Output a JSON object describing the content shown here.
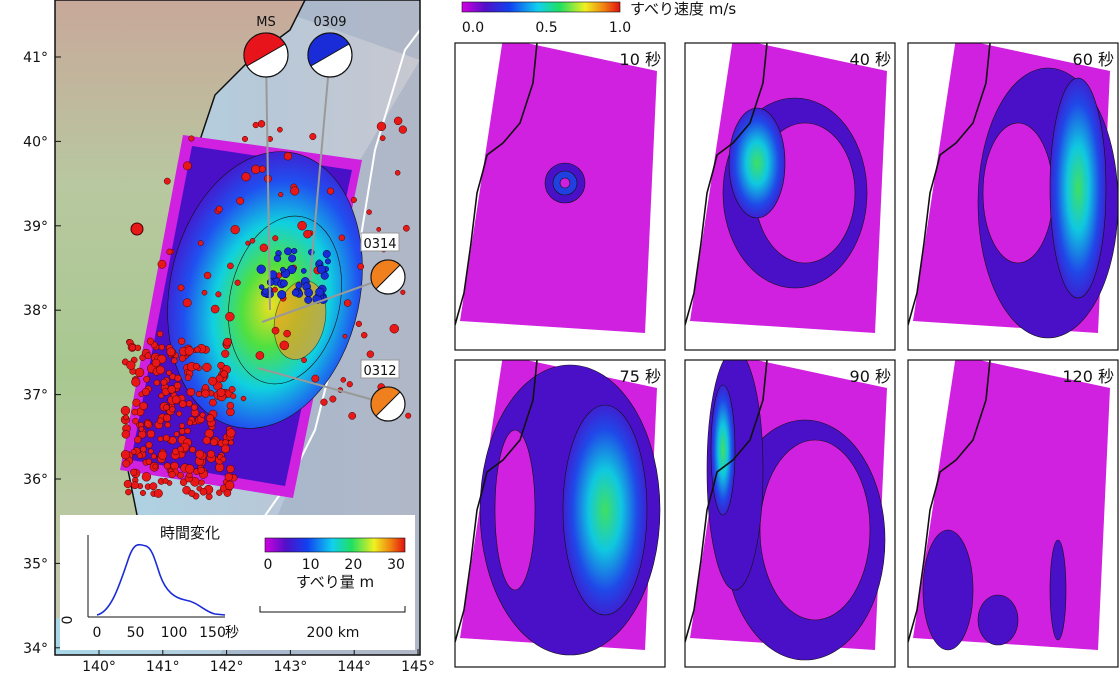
{
  "map": {
    "lat_ticks": [
      {
        "value": 41,
        "label": "41°"
      },
      {
        "value": 40,
        "label": "40°"
      },
      {
        "value": 39,
        "label": "39°"
      },
      {
        "value": 38,
        "label": "38°"
      },
      {
        "value": 37,
        "label": "37°"
      },
      {
        "value": 36,
        "label": "36°"
      },
      {
        "value": 35,
        "label": "35°"
      },
      {
        "value": 34,
        "label": "34°"
      }
    ],
    "lon_ticks": [
      {
        "value": 140,
        "label": "140°"
      },
      {
        "value": 141,
        "label": "141°"
      },
      {
        "value": 142,
        "label": "142°"
      },
      {
        "value": 143,
        "label": "143°"
      },
      {
        "value": 144,
        "label": "144°"
      },
      {
        "value": 145,
        "label": "145°"
      }
    ],
    "mechanisms": [
      {
        "label": "MS",
        "color": "#e8141c"
      },
      {
        "label": "0309",
        "color": "#1a2cd8"
      },
      {
        "label": "0314",
        "color": "#f0801e"
      },
      {
        "label": "0312",
        "color": "#f0801e"
      }
    ],
    "inset": {
      "title": "時間変化",
      "xticks": [
        0,
        50,
        100,
        150
      ],
      "x_unit": "秒",
      "y_label": "0"
    },
    "slip_colorbar": {
      "ticks": [
        0,
        10,
        20,
        30
      ],
      "label": "すべり量 m"
    },
    "scale_bar": "200 km"
  },
  "rate_colorbar": {
    "ticks": [
      {
        "value": 0,
        "label": "0.0"
      },
      {
        "value": 0.5,
        "label": "0.5"
      },
      {
        "value": 1,
        "label": "1.0"
      }
    ],
    "label": "すべり速度 m/s"
  },
  "snapshots": [
    "10 秒",
    "40 秒",
    "60 秒",
    "75 秒",
    "90 秒",
    "120 秒"
  ]
}
